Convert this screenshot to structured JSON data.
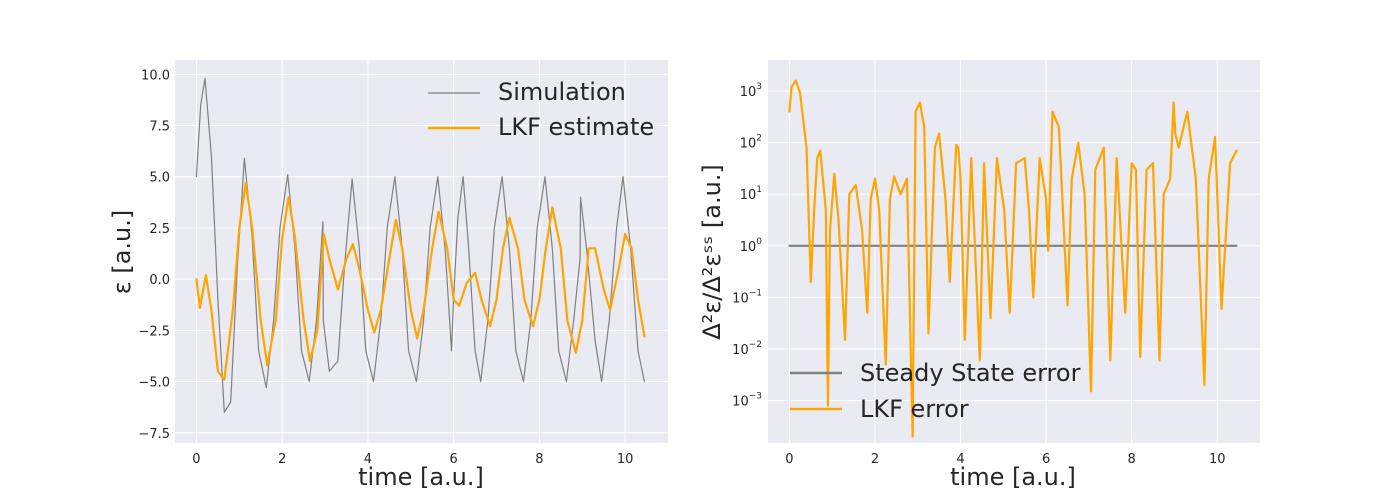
{
  "chart_data": [
    {
      "type": "line",
      "xlabel": "time [a.u.]",
      "ylabel": "ε [a.u.]",
      "xlim": [
        -0.5,
        11.0
      ],
      "ylim": [
        -8.0,
        10.7
      ],
      "xticks": [
        0,
        2,
        4,
        6,
        8,
        10
      ],
      "xtick_labels": [
        "0",
        "2",
        "4",
        "6",
        "8",
        "10"
      ],
      "yticks": [
        -7.5,
        -5.0,
        -2.5,
        0.0,
        2.5,
        5.0,
        7.5,
        10.0
      ],
      "ytick_labels": [
        "−7.5",
        "−5.0",
        "−2.5",
        "0.0",
        "2.5",
        "5.0",
        "7.5",
        "10.0"
      ],
      "grid": true,
      "legend_position": "top-right",
      "series": [
        {
          "name": "Simulation",
          "color": "#808080",
          "x": [
            0.0,
            0.1,
            0.2,
            0.35,
            0.5,
            0.65,
            0.8,
            0.95,
            1.12,
            1.3,
            1.45,
            1.63,
            1.8,
            1.95,
            2.13,
            2.3,
            2.45,
            2.63,
            2.8,
            2.95,
            2.96,
            3.1,
            3.3,
            3.45,
            3.63,
            3.8,
            3.95,
            4.13,
            4.3,
            4.45,
            4.63,
            4.8,
            4.95,
            5.13,
            5.3,
            5.45,
            5.63,
            5.8,
            5.95,
            6.0,
            6.01,
            6.1,
            6.22,
            6.35,
            6.5,
            6.63,
            6.8,
            6.95,
            7.13,
            7.3,
            7.45,
            7.63,
            7.8,
            7.95,
            8.13,
            8.3,
            8.45,
            8.63,
            8.8,
            8.95,
            8.96,
            9.1,
            9.3,
            9.45,
            9.63,
            9.8,
            9.95,
            10.13,
            10.3,
            10.45
          ],
          "y": [
            5.0,
            8.5,
            9.8,
            6.0,
            -1.0,
            -6.5,
            -6.0,
            0.5,
            5.9,
            2.0,
            -3.5,
            -5.3,
            -2.0,
            2.5,
            5.1,
            1.5,
            -3.5,
            -5.0,
            -2.0,
            2.8,
            -2.0,
            -4.5,
            -4.0,
            0.5,
            4.9,
            1.5,
            -3.5,
            -5.0,
            -2.0,
            2.5,
            5.0,
            1.5,
            -3.5,
            -5.0,
            -2.0,
            2.5,
            5.0,
            1.5,
            -3.5,
            -0.8,
            -0.5,
            3.0,
            5.0,
            1.5,
            -3.5,
            -5.0,
            -2.0,
            2.5,
            5.0,
            1.5,
            -3.5,
            -5.0,
            -2.0,
            2.5,
            5.0,
            1.5,
            -3.5,
            -5.0,
            -2.0,
            1.0,
            4.0,
            1.5,
            -3.0,
            -5.0,
            -2.0,
            2.5,
            5.0,
            1.5,
            -3.5,
            -5.0
          ]
        },
        {
          "name": "LKF estimate",
          "color": "#ffa500",
          "x": [
            0.0,
            0.08,
            0.22,
            0.35,
            0.5,
            0.65,
            0.85,
            1.0,
            1.15,
            1.3,
            1.5,
            1.65,
            1.85,
            2.0,
            2.15,
            2.3,
            2.5,
            2.65,
            2.82,
            2.97,
            3.1,
            3.3,
            3.5,
            3.65,
            3.8,
            4.0,
            4.15,
            4.3,
            4.5,
            4.65,
            4.8,
            5.0,
            5.15,
            5.3,
            5.5,
            5.65,
            5.85,
            6.0,
            6.13,
            6.3,
            6.5,
            6.65,
            6.85,
            7.0,
            7.15,
            7.3,
            7.5,
            7.65,
            7.85,
            8.0,
            8.15,
            8.3,
            8.5,
            8.65,
            8.85,
            9.0,
            9.15,
            9.3,
            9.5,
            9.65,
            9.85,
            10.0,
            10.15,
            10.3,
            10.45
          ],
          "y": [
            0.0,
            -1.4,
            0.2,
            -1.5,
            -4.5,
            -4.9,
            -1.5,
            2.5,
            4.7,
            2.5,
            -2.0,
            -4.2,
            -2.0,
            2.0,
            4.0,
            2.0,
            -2.0,
            -4.0,
            -2.5,
            2.2,
            1.0,
            -0.5,
            1.0,
            1.7,
            0.5,
            -1.5,
            -2.6,
            -1.5,
            1.0,
            2.9,
            1.5,
            -1.5,
            -2.9,
            -1.5,
            1.5,
            3.3,
            1.5,
            -1.0,
            -1.3,
            -0.2,
            0.3,
            -1.0,
            -2.3,
            -1.0,
            1.5,
            3.0,
            1.5,
            -1.0,
            -2.3,
            -1.0,
            1.5,
            3.5,
            1.5,
            -2.0,
            -3.6,
            -2.0,
            1.5,
            1.5,
            -0.5,
            -1.5,
            0.5,
            2.2,
            1.5,
            -1.0,
            -2.8
          ]
        }
      ]
    },
    {
      "type": "line",
      "xlabel": "time [a.u.]",
      "ylabel": "Δ²ε/Δ²εˢˢ [a.u.]",
      "yscale": "log",
      "xlim": [
        -0.5,
        11.0
      ],
      "ylim": [
        0.00015,
        4000
      ],
      "xticks": [
        0,
        2,
        4,
        6,
        8,
        10
      ],
      "xtick_labels": [
        "0",
        "2",
        "4",
        "6",
        "8",
        "10"
      ],
      "yticks": [
        0.001,
        0.01,
        0.1,
        1,
        10,
        100,
        1000
      ],
      "ytick_exponents": [
        "−3",
        "−2",
        "−1",
        "0",
        "1",
        "2",
        "3"
      ],
      "grid": true,
      "legend_position": "bottom-left",
      "series": [
        {
          "name": "Steady State error",
          "color": "#808080",
          "x": [
            0.0,
            10.45
          ],
          "y": [
            1.0,
            1.0
          ]
        },
        {
          "name": "LKF error",
          "color": "#ffa500",
          "x": [
            0.0,
            0.05,
            0.15,
            0.25,
            0.4,
            0.5,
            0.58,
            0.65,
            0.72,
            0.85,
            0.9,
            0.95,
            1.05,
            1.15,
            1.3,
            1.4,
            1.55,
            1.7,
            1.82,
            1.9,
            2.0,
            2.1,
            2.25,
            2.35,
            2.45,
            2.6,
            2.75,
            2.88,
            2.95,
            3.05,
            3.15,
            3.25,
            3.4,
            3.5,
            3.65,
            3.75,
            3.9,
            3.95,
            4.0,
            4.1,
            4.25,
            4.45,
            4.55,
            4.7,
            4.85,
            5.02,
            5.15,
            5.3,
            5.5,
            5.6,
            5.7,
            5.85,
            6.0,
            6.05,
            6.15,
            6.3,
            6.5,
            6.6,
            6.75,
            6.9,
            7.05,
            7.15,
            7.35,
            7.5,
            7.65,
            7.85,
            8.0,
            8.1,
            8.2,
            8.35,
            8.5,
            8.65,
            8.75,
            8.9,
            8.98,
            9.02,
            9.1,
            9.3,
            9.5,
            9.7,
            9.8,
            9.95,
            10.1,
            10.3,
            10.45
          ],
          "y": [
            400,
            1200,
            1600,
            900,
            80,
            0.2,
            5,
            50,
            70,
            5,
            0.0008,
            2,
            25,
            3,
            0.015,
            10,
            15,
            2,
            0.05,
            8,
            20,
            5,
            0.005,
            8,
            22,
            10,
            20,
            0.0002,
            400,
            600,
            200,
            0.02,
            80,
            150,
            8,
            0.2,
            90,
            80,
            20,
            0.015,
            50,
            0.006,
            40,
            0.04,
            50,
            5,
            0.05,
            40,
            50,
            5,
            0.1,
            50,
            8,
            0.8,
            400,
            200,
            0.07,
            20,
            100,
            10,
            0.0015,
            30,
            80,
            0.006,
            50,
            0.05,
            40,
            30,
            0.007,
            30,
            40,
            0.006,
            10,
            20,
            600,
            150,
            80,
            400,
            20,
            0.002,
            20,
            130,
            0.06,
            40,
            70
          ]
        }
      ]
    }
  ]
}
